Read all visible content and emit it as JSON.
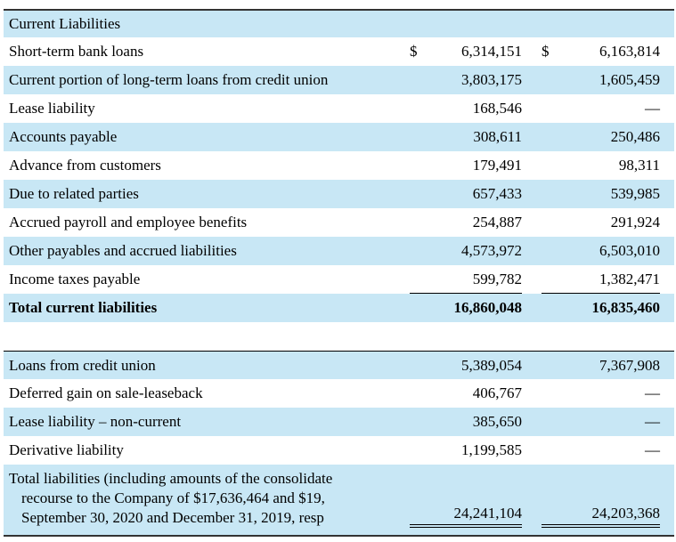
{
  "colors": {
    "row_highlight": "#c8e7f5",
    "rule": "#000000",
    "heavy_rule": "#333333",
    "text": "#000000",
    "page_bg": "#ffffff"
  },
  "table": {
    "rows": [
      {
        "section": true,
        "label": "Current Liabilities",
        "shaded": true
      },
      {
        "label": "Short-term bank loans",
        "d1": "$",
        "v1": "6,314,151",
        "d2": "$",
        "v2": "6,163,814",
        "shaded": false
      },
      {
        "label": "Current portion of long-term loans from credit union",
        "v1": "3,803,175",
        "v2": "1,605,459",
        "shaded": true
      },
      {
        "label": "Lease liability",
        "v1": "168,546",
        "v2": "—",
        "shaded": false
      },
      {
        "label": "Accounts payable",
        "v1": "308,611",
        "v2": "250,486",
        "shaded": true
      },
      {
        "label": "Advance from customers",
        "v1": "179,491",
        "v2": "98,311",
        "shaded": false
      },
      {
        "label": "Due to related parties",
        "v1": "657,433",
        "v2": "539,985",
        "shaded": true
      },
      {
        "label": "Accrued payroll and employee benefits",
        "v1": "254,887",
        "v2": "291,924",
        "shaded": false
      },
      {
        "label": "Other payables and accrued liabilities",
        "v1": "4,573,972",
        "v2": "6,503,010",
        "shaded": true
      },
      {
        "label": "Income taxes payable",
        "v1": "599,782",
        "v2": "1,382,471",
        "shaded": false,
        "underline": "single"
      },
      {
        "label": "Total current liabilities",
        "v1": "16,860,048",
        "v2": "16,835,460",
        "shaded": true,
        "bold": true
      },
      {
        "blank": true
      },
      {
        "label": "Loans from credit union",
        "v1": "5,389,054",
        "v2": "7,367,908",
        "shaded": true,
        "top_border": true
      },
      {
        "label": "Deferred gain on sale-leaseback",
        "v1": "406,767",
        "v2": "—",
        "shaded": false
      },
      {
        "label": "Lease liability – non-current",
        "v1": "385,650",
        "v2": "—",
        "shaded": true
      },
      {
        "label": "Derivative liability",
        "v1": "1,199,585",
        "v2": "—",
        "shaded": false
      },
      {
        "label_lines": [
          "Total liabilities (including amounts of the consolidate",
          "recourse to the Company of $17,636,464 and $19,",
          "September 30, 2020 and December 31, 2019, resp"
        ],
        "v1": "24,241,104",
        "v2": "24,203,368",
        "shaded": true,
        "underline": "double"
      }
    ]
  }
}
